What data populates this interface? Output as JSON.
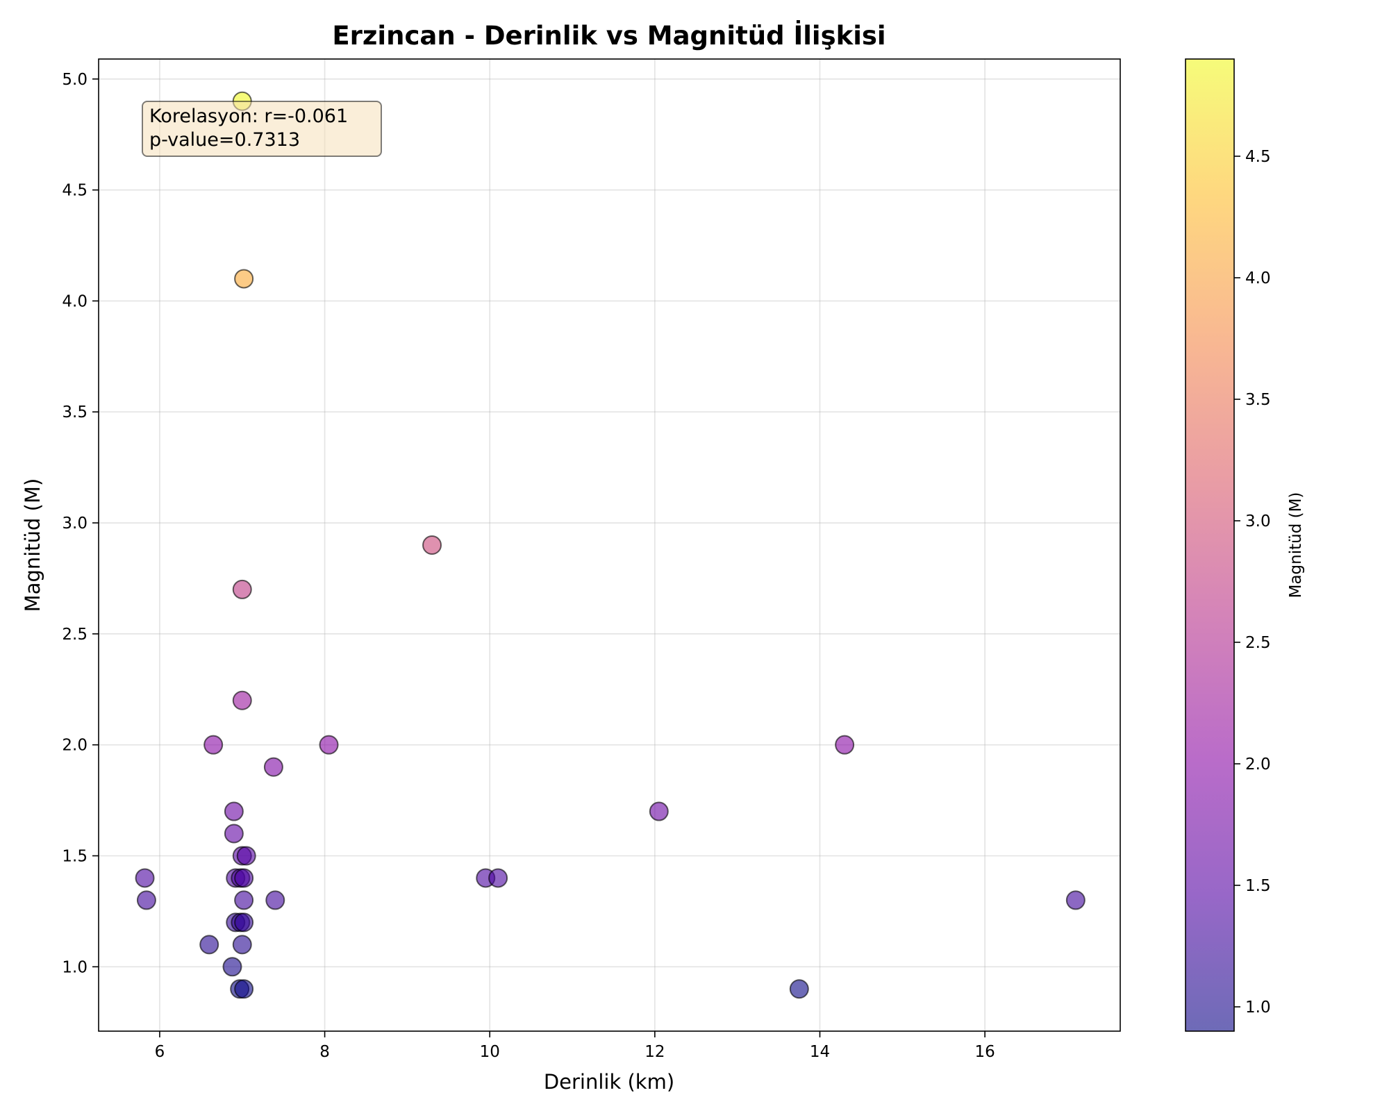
{
  "chart_data": {
    "type": "scatter",
    "title": "Erzincan - Derinlik vs Magnitüd İlişkisi",
    "xlabel": "Derinlik (km)",
    "ylabel": "Magnitüd (M)",
    "xlim": [
      5.26,
      17.64
    ],
    "ylim": [
      0.71,
      5.09
    ],
    "xticks": [
      6,
      8,
      10,
      12,
      14,
      16
    ],
    "yticks": [
      1.0,
      1.5,
      2.0,
      2.5,
      3.0,
      3.5,
      4.0,
      4.5,
      5.0
    ],
    "grid": true,
    "colorbar": {
      "label": "Magnitüd (M)",
      "colormap": "plasma",
      "range": [
        0.9,
        4.9
      ],
      "ticks": [
        1.0,
        1.5,
        2.0,
        2.5,
        3.0,
        3.5,
        4.0,
        4.5
      ]
    },
    "annotation": {
      "lines": [
        "Korelasyon: r=-0.061",
        "p-value=0.7313"
      ],
      "placement": "top-left",
      "box_color": "#f5deb3"
    },
    "marker_alpha": 0.6,
    "points": [
      {
        "x": 7.0,
        "y": 4.9
      },
      {
        "x": 7.02,
        "y": 4.1
      },
      {
        "x": 9.3,
        "y": 2.9
      },
      {
        "x": 7.0,
        "y": 2.7
      },
      {
        "x": 7.0,
        "y": 2.2
      },
      {
        "x": 6.65,
        "y": 2.0
      },
      {
        "x": 8.05,
        "y": 2.0
      },
      {
        "x": 14.3,
        "y": 2.0
      },
      {
        "x": 7.38,
        "y": 1.9
      },
      {
        "x": 6.9,
        "y": 1.7
      },
      {
        "x": 12.05,
        "y": 1.7
      },
      {
        "x": 6.9,
        "y": 1.6
      },
      {
        "x": 7.0,
        "y": 1.5
      },
      {
        "x": 7.05,
        "y": 1.5
      },
      {
        "x": 5.82,
        "y": 1.4
      },
      {
        "x": 6.92,
        "y": 1.4
      },
      {
        "x": 6.98,
        "y": 1.4
      },
      {
        "x": 7.02,
        "y": 1.4
      },
      {
        "x": 9.95,
        "y": 1.4
      },
      {
        "x": 10.1,
        "y": 1.4
      },
      {
        "x": 5.84,
        "y": 1.3
      },
      {
        "x": 7.02,
        "y": 1.3
      },
      {
        "x": 7.4,
        "y": 1.3
      },
      {
        "x": 17.1,
        "y": 1.3
      },
      {
        "x": 6.92,
        "y": 1.2
      },
      {
        "x": 6.98,
        "y": 1.2
      },
      {
        "x": 7.02,
        "y": 1.2
      },
      {
        "x": 6.6,
        "y": 1.1
      },
      {
        "x": 7.0,
        "y": 1.1
      },
      {
        "x": 6.88,
        "y": 1.0
      },
      {
        "x": 6.97,
        "y": 0.9
      },
      {
        "x": 7.02,
        "y": 0.9
      },
      {
        "x": 13.75,
        "y": 0.9
      }
    ]
  }
}
